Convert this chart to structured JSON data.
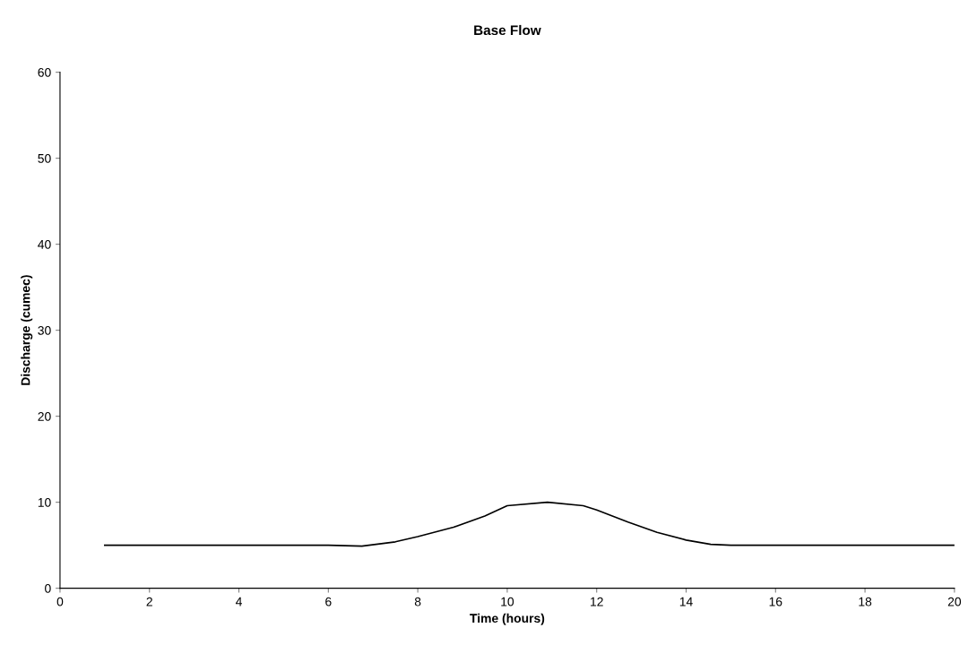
{
  "chart_data": {
    "type": "line",
    "title": "Base Flow",
    "xlabel": "Time (hours)",
    "ylabel": "Discharge (cumec)",
    "x": [
      1,
      2,
      3,
      4,
      5,
      6,
      6.75,
      7.5,
      8,
      8.8,
      9.5,
      10,
      10.9,
      11.7,
      12,
      12.7,
      13.35,
      14,
      14.55,
      15,
      16,
      17,
      18,
      19,
      20
    ],
    "series": [
      {
        "color": "#000000",
        "values": [
          5,
          5,
          5,
          5,
          5,
          5,
          4.9,
          5.4,
          6,
          7.1,
          8.4,
          9.6,
          10,
          9.6,
          9.1,
          7.7,
          6.5,
          5.6,
          5.1,
          5,
          5,
          5,
          5,
          5,
          5
        ]
      }
    ],
    "xlim": [
      0,
      20
    ],
    "xticks": [
      0,
      2,
      4,
      6,
      8,
      10,
      12,
      14,
      16,
      18,
      20
    ],
    "ylim": [
      0,
      60
    ],
    "yticks": [
      0,
      10,
      20,
      30,
      40,
      50,
      60
    ],
    "grid": false,
    "legend": false,
    "marker": "none",
    "line_style": "solid"
  }
}
